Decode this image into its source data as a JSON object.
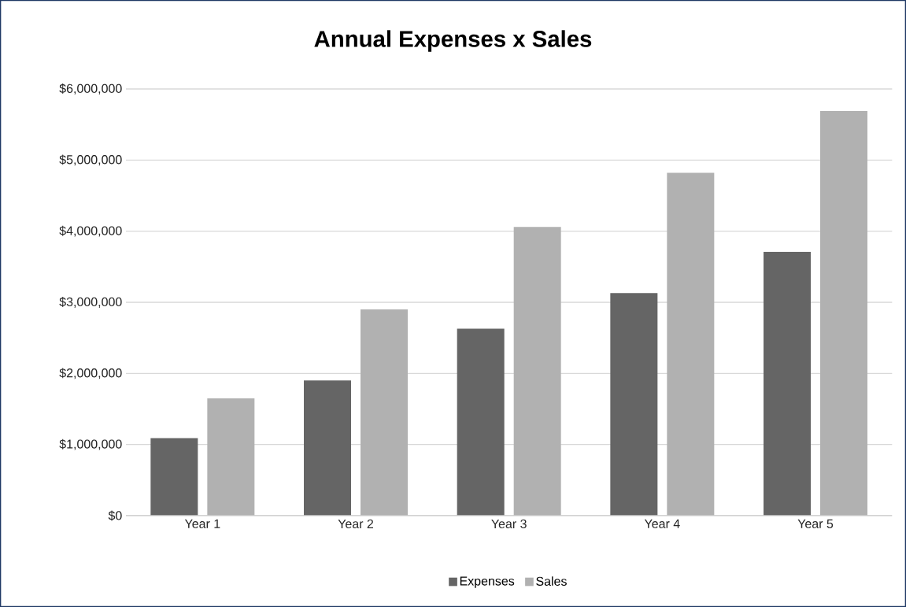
{
  "chart_data": {
    "type": "bar",
    "title": "Annual Expenses x Sales",
    "categories": [
      "Year 1",
      "Year 2",
      "Year 3",
      "Year 4",
      "Year 5"
    ],
    "series": [
      {
        "name": "Expenses",
        "color": "#656565",
        "values": [
          1090000,
          1900000,
          2630000,
          3130000,
          3710000
        ]
      },
      {
        "name": "Sales",
        "color": "#b1b1b1",
        "values": [
          1650000,
          2900000,
          4060000,
          4820000,
          5690000
        ]
      }
    ],
    "ylim": [
      0,
      6000000
    ],
    "yticks": [
      {
        "value": 0,
        "label": "$0"
      },
      {
        "value": 1000000,
        "label": "$1,000,000"
      },
      {
        "value": 2000000,
        "label": "$2,000,000"
      },
      {
        "value": 3000000,
        "label": "$3,000,000"
      },
      {
        "value": 4000000,
        "label": "$4,000,000"
      },
      {
        "value": 5000000,
        "label": "$5,000,000"
      },
      {
        "value": 6000000,
        "label": "$6,000,000"
      }
    ],
    "grid": "y",
    "legend": "bottom"
  }
}
